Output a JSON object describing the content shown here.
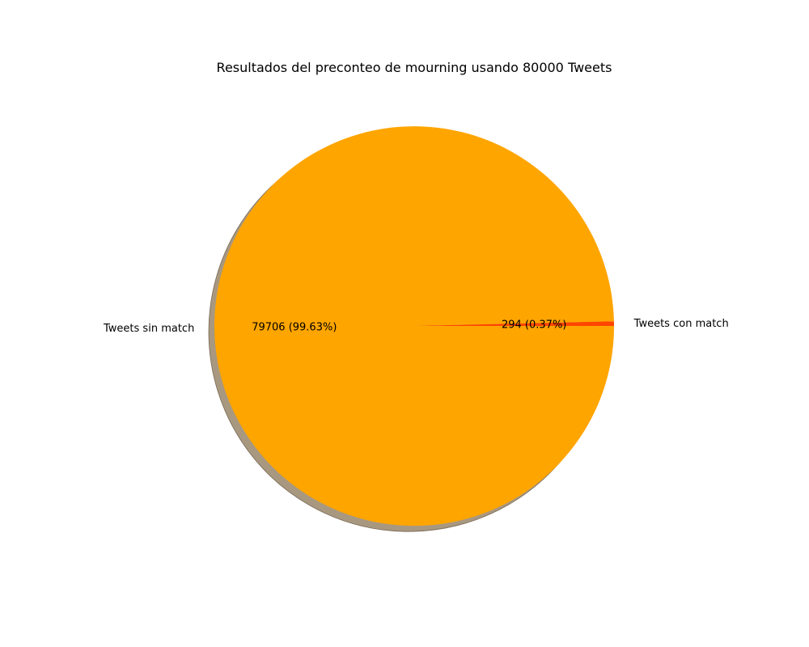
{
  "chart_data": {
    "type": "pie",
    "title": "Resultados del preconteo de mourning usando 80000 Tweets",
    "slices": [
      {
        "label": "Tweets con match",
        "value": 294,
        "percent_label": "294 (0.37%)",
        "color": "#ff4500"
      },
      {
        "label": "Tweets sin match",
        "value": 79706,
        "percent_label": "79706 (99.63%)",
        "color": "#ffa500"
      }
    ],
    "shadow": true,
    "shadow_color": "#a89880",
    "start_angle_deg": 0,
    "direction": "counterclockwise",
    "legend": "none"
  }
}
